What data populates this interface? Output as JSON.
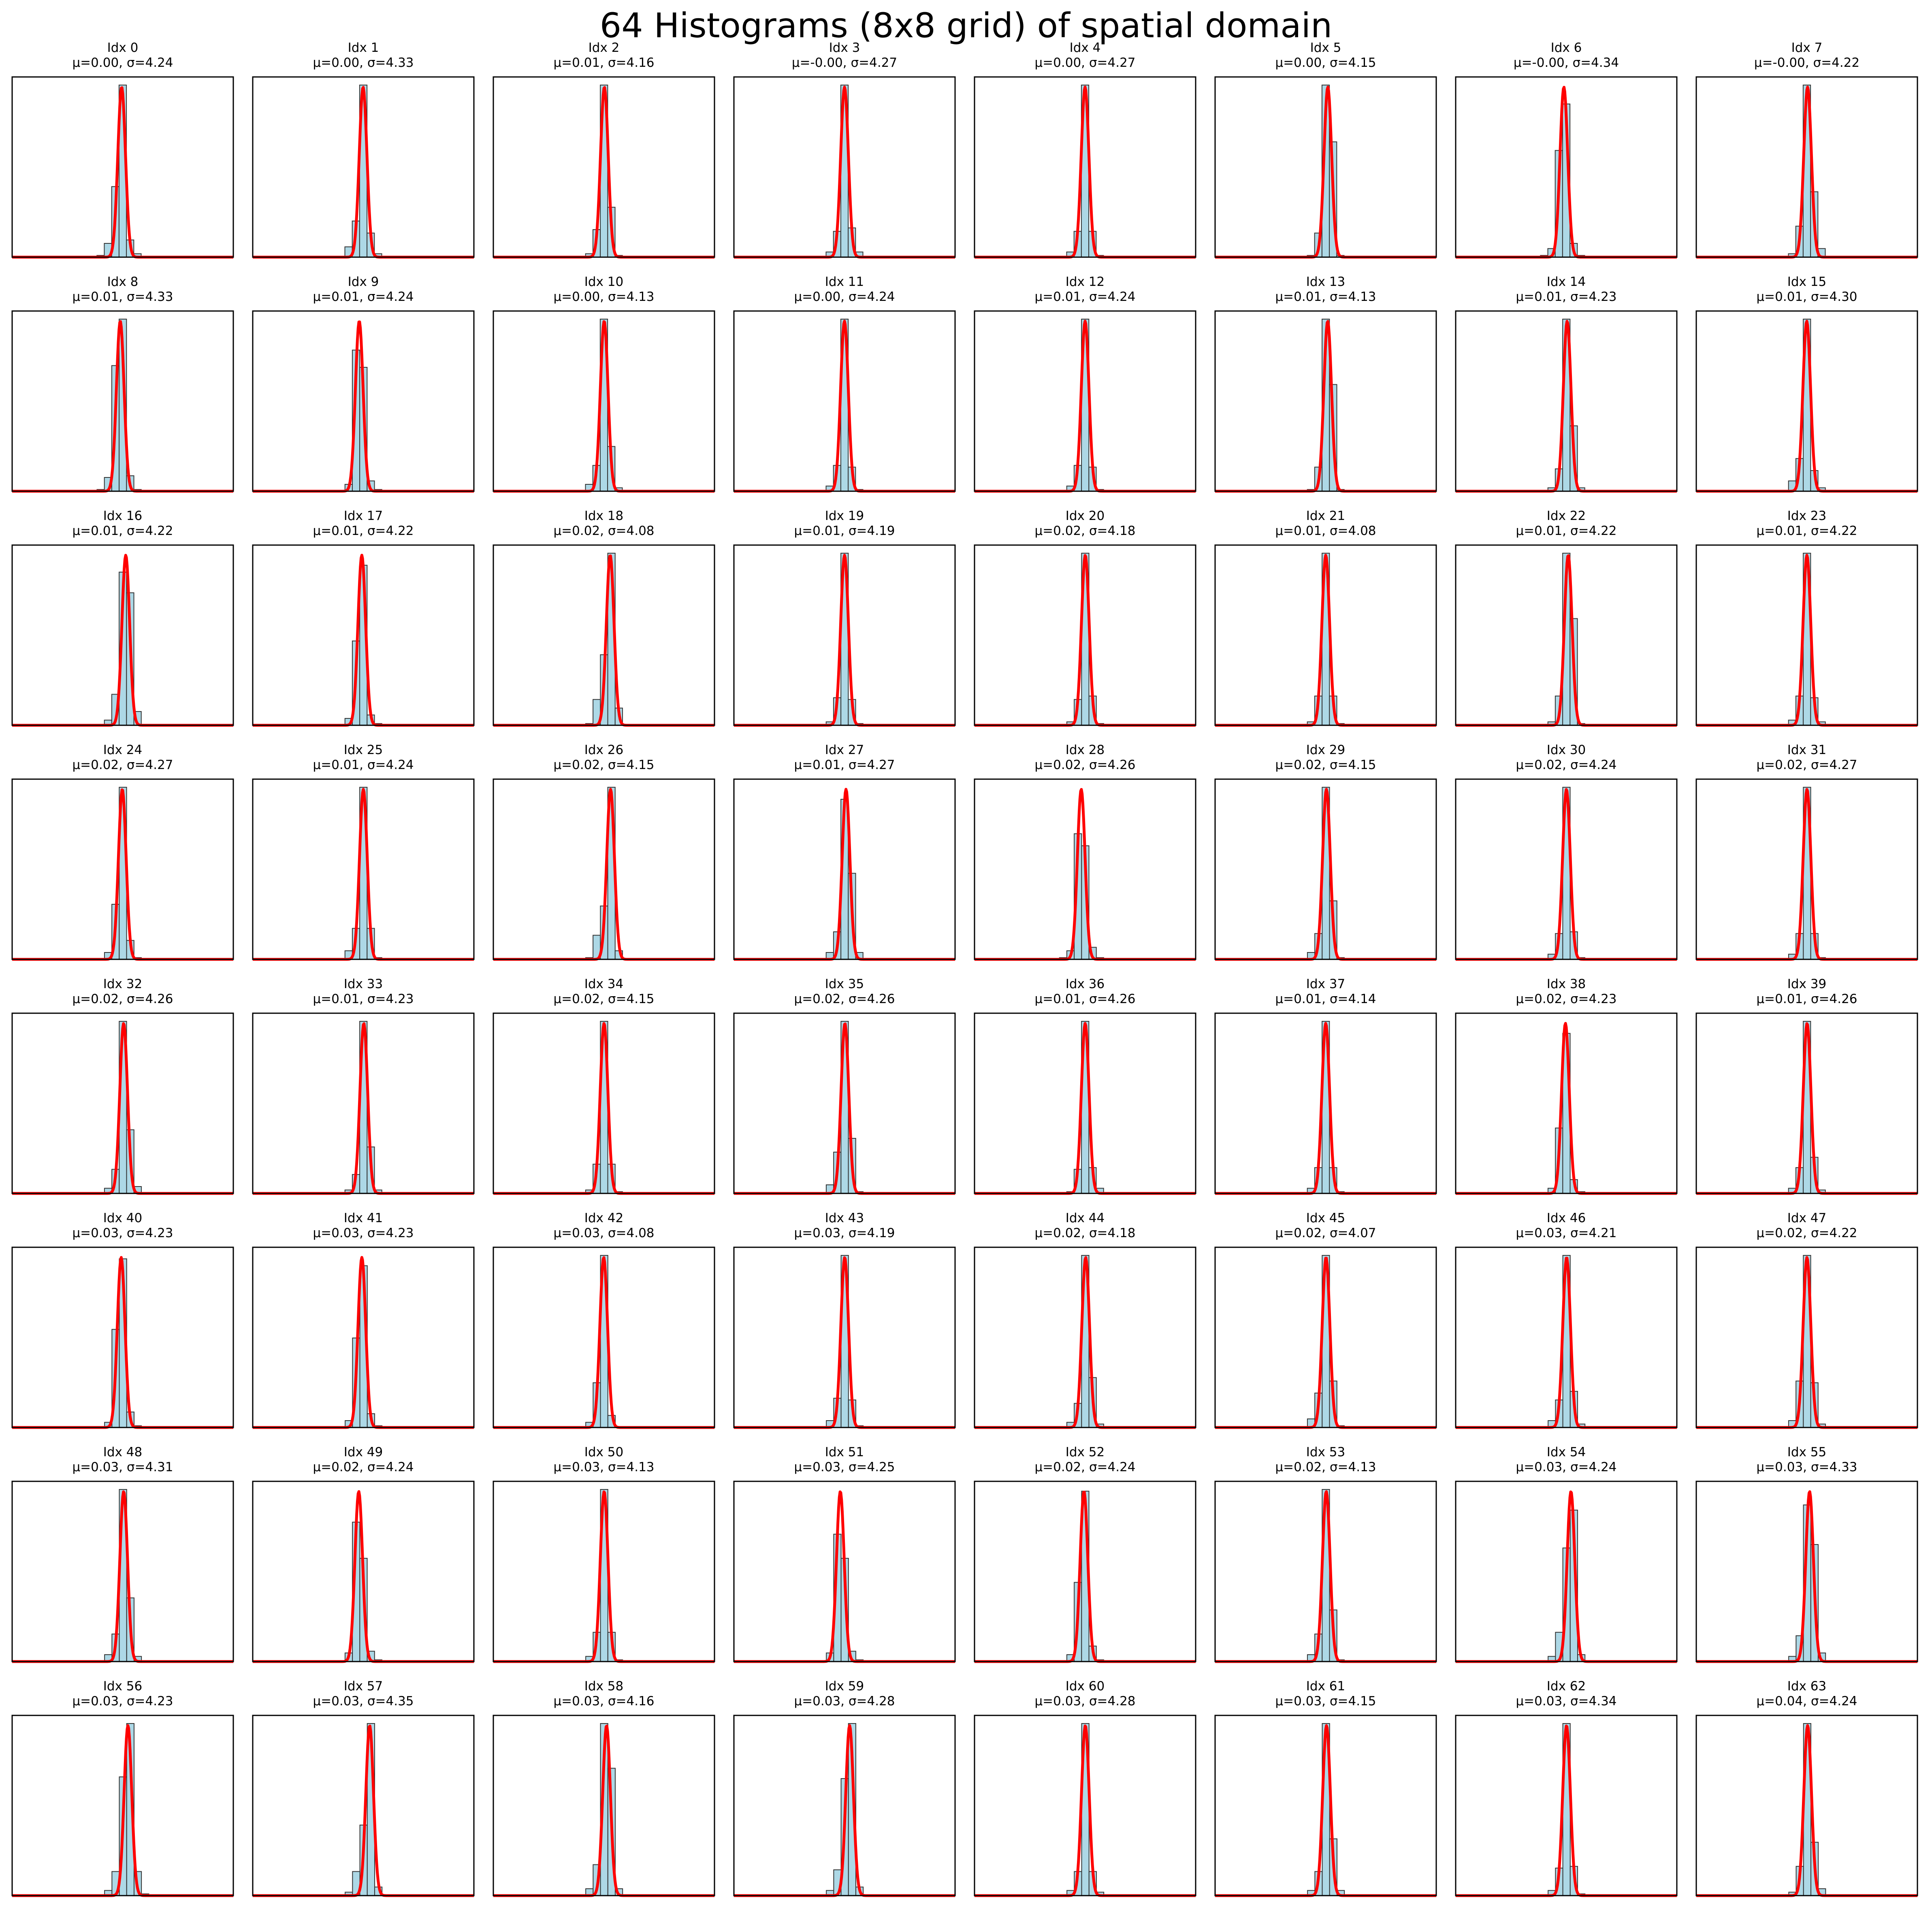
{
  "title": "64 Histograms (8x8 grid) of spatial domain",
  "colors": {
    "bar_fill": "#add8e6",
    "bar_edge": "#333333",
    "fit_curve": "#ff0000",
    "axes_frame": "#000000"
  },
  "chart_data": {
    "type": "histogram-grid",
    "rows": 8,
    "cols": 8,
    "xlim": [
      -150,
      150
    ],
    "bin_width": 10,
    "bins": [
      -30,
      -20,
      -10,
      0,
      10,
      20,
      30
    ],
    "axes_ticks_visible": false,
    "fit": "normal-pdf",
    "grid": false,
    "panels": [
      {
        "label": "Idx 0",
        "stats": "μ=0.00, σ=4.24",
        "mu": 0.0,
        "sigma": 4.24,
        "counts": [
          0.01,
          0.08,
          0.41,
          1.0,
          0.1,
          0.02,
          0.0
        ]
      },
      {
        "label": "Idx 1",
        "stats": "μ=0.00, σ=4.33",
        "mu": 0.0,
        "sigma": 4.33,
        "counts": [
          0.0,
          0.06,
          0.21,
          1.0,
          0.14,
          0.02,
          0.0
        ]
      },
      {
        "label": "Idx 2",
        "stats": "μ=0.01, σ=4.16",
        "mu": 0.01,
        "sigma": 4.16,
        "counts": [
          0.0,
          0.02,
          0.16,
          1.0,
          0.29,
          0.01,
          0.0
        ]
      },
      {
        "label": "Idx 3",
        "stats": "μ=-0.00, σ=4.27",
        "mu": -0.0,
        "sigma": 4.27,
        "counts": [
          0.0,
          0.03,
          0.15,
          1.0,
          0.17,
          0.03,
          0.0
        ]
      },
      {
        "label": "Idx 4",
        "stats": "μ=0.00, σ=4.27",
        "mu": 0.0,
        "sigma": 4.27,
        "counts": [
          0.0,
          0.03,
          0.15,
          1.0,
          0.15,
          0.01,
          0.0
        ]
      },
      {
        "label": "Idx 5",
        "stats": "μ=0.00, σ=4.15",
        "mu": 0.0,
        "sigma": 4.15,
        "counts": [
          0.0,
          0.01,
          0.14,
          1.0,
          0.67,
          0.01,
          0.0
        ]
      },
      {
        "label": "Idx 6",
        "stats": "μ=-0.00, σ=4.34",
        "mu": -0.0,
        "sigma": 4.34,
        "counts": [
          0.01,
          0.05,
          0.62,
          0.89,
          0.08,
          0.01,
          0.0
        ]
      },
      {
        "label": "Idx 7",
        "stats": "μ=-0.00, σ=4.22",
        "mu": -0.0,
        "sigma": 4.22,
        "counts": [
          0.0,
          0.02,
          0.18,
          1.0,
          0.38,
          0.05,
          0.0
        ]
      },
      {
        "label": "Idx 8",
        "stats": "μ=0.01, σ=4.33",
        "mu": 0.01,
        "sigma": 4.33,
        "counts": [
          0.01,
          0.08,
          0.73,
          1.0,
          0.09,
          0.01,
          0.0
        ]
      },
      {
        "label": "Idx 9",
        "stats": "μ=0.01, σ=4.24",
        "mu": 0.01,
        "sigma": 4.24,
        "counts": [
          0.0,
          0.04,
          0.82,
          0.72,
          0.06,
          0.01,
          0.0
        ]
      },
      {
        "label": "Idx 10",
        "stats": "μ=0.00, σ=4.13",
        "mu": 0.0,
        "sigma": 4.13,
        "counts": [
          0.0,
          0.04,
          0.15,
          1.0,
          0.26,
          0.02,
          0.0
        ]
      },
      {
        "label": "Idx 11",
        "stats": "μ=0.00, σ=4.24",
        "mu": 0.0,
        "sigma": 4.24,
        "counts": [
          0.0,
          0.03,
          0.15,
          1.0,
          0.14,
          0.01,
          0.0
        ]
      },
      {
        "label": "Idx 12",
        "stats": "μ=0.01, σ=4.24",
        "mu": 0.01,
        "sigma": 4.24,
        "counts": [
          0.0,
          0.03,
          0.15,
          1.0,
          0.14,
          0.01,
          0.0
        ]
      },
      {
        "label": "Idx 13",
        "stats": "μ=0.01, σ=4.13",
        "mu": 0.01,
        "sigma": 4.13,
        "counts": [
          0.0,
          0.01,
          0.14,
          1.0,
          0.62,
          0.01,
          0.0
        ]
      },
      {
        "label": "Idx 14",
        "stats": "μ=0.01, σ=4.23",
        "mu": 0.01,
        "sigma": 4.23,
        "counts": [
          0.0,
          0.02,
          0.13,
          1.0,
          0.38,
          0.02,
          0.0
        ]
      },
      {
        "label": "Idx 15",
        "stats": "μ=0.01, σ=4.30",
        "mu": 0.01,
        "sigma": 4.3,
        "counts": [
          0.0,
          0.06,
          0.19,
          1.0,
          0.12,
          0.02,
          0.0
        ]
      },
      {
        "label": "Idx 16",
        "stats": "μ=0.01, σ=4.22",
        "mu": 0.01,
        "sigma": 4.22,
        "counts": [
          0.0,
          0.03,
          0.18,
          0.89,
          0.77,
          0.08,
          0.0
        ]
      },
      {
        "label": "Idx 17",
        "stats": "μ=0.01, σ=4.22",
        "mu": 0.01,
        "sigma": 4.22,
        "counts": [
          0.0,
          0.04,
          0.49,
          0.93,
          0.06,
          0.01,
          0.0
        ]
      },
      {
        "label": "Idx 18",
        "stats": "μ=0.02, σ=4.08",
        "mu": 0.02,
        "sigma": 4.08,
        "counts": [
          0.0,
          0.01,
          0.15,
          0.41,
          1.0,
          0.1,
          0.0
        ]
      },
      {
        "label": "Idx 19",
        "stats": "μ=0.01, σ=4.19",
        "mu": 0.01,
        "sigma": 4.19,
        "counts": [
          0.0,
          0.02,
          0.16,
          1.0,
          0.15,
          0.01,
          0.0
        ]
      },
      {
        "label": "Idx 20",
        "stats": "μ=0.02, σ=4.18",
        "mu": 0.02,
        "sigma": 4.18,
        "counts": [
          0.0,
          0.02,
          0.15,
          1.0,
          0.17,
          0.01,
          0.0
        ]
      },
      {
        "label": "Idx 21",
        "stats": "μ=0.01, σ=4.08",
        "mu": 0.01,
        "sigma": 4.08,
        "counts": [
          0.0,
          0.02,
          0.17,
          1.0,
          0.17,
          0.01,
          0.0
        ]
      },
      {
        "label": "Idx 22",
        "stats": "μ=0.01, σ=4.22",
        "mu": 0.01,
        "sigma": 4.22,
        "counts": [
          0.0,
          0.02,
          0.17,
          1.0,
          0.62,
          0.01,
          0.0
        ]
      },
      {
        "label": "Idx 23",
        "stats": "μ=0.01, σ=4.22",
        "mu": 0.01,
        "sigma": 4.22,
        "counts": [
          0.0,
          0.03,
          0.17,
          1.0,
          0.16,
          0.02,
          0.0
        ]
      },
      {
        "label": "Idx 24",
        "stats": "μ=0.02, σ=4.27",
        "mu": 0.02,
        "sigma": 4.27,
        "counts": [
          0.0,
          0.04,
          0.32,
          1.0,
          0.11,
          0.01,
          0.0
        ]
      },
      {
        "label": "Idx 25",
        "stats": "μ=0.01, σ=4.24",
        "mu": 0.01,
        "sigma": 4.24,
        "counts": [
          0.0,
          0.05,
          0.18,
          1.0,
          0.18,
          0.01,
          0.0
        ]
      },
      {
        "label": "Idx 26",
        "stats": "μ=0.02, σ=4.15",
        "mu": 0.02,
        "sigma": 4.15,
        "counts": [
          0.0,
          0.01,
          0.14,
          0.31,
          1.0,
          0.05,
          0.0
        ]
      },
      {
        "label": "Idx 27",
        "stats": "μ=0.01, σ=4.27",
        "mu": 0.01,
        "sigma": 4.27,
        "counts": [
          0.0,
          0.04,
          0.16,
          0.93,
          0.5,
          0.04,
          0.0
        ]
      },
      {
        "label": "Idx 28",
        "stats": "μ=0.02, σ=4.26",
        "mu": 0.02,
        "sigma": 4.26,
        "counts": [
          0.01,
          0.05,
          0.73,
          0.66,
          0.07,
          0.01,
          0.0
        ]
      },
      {
        "label": "Idx 29",
        "stats": "μ=0.02, σ=4.15",
        "mu": 0.02,
        "sigma": 4.15,
        "counts": [
          0.0,
          0.04,
          0.15,
          1.0,
          0.34,
          0.01,
          0.0
        ]
      },
      {
        "label": "Idx 30",
        "stats": "μ=0.02, σ=4.24",
        "mu": 0.02,
        "sigma": 4.24,
        "counts": [
          0.0,
          0.03,
          0.15,
          1.0,
          0.16,
          0.01,
          0.0
        ]
      },
      {
        "label": "Idx 31",
        "stats": "μ=0.02, σ=4.27",
        "mu": 0.02,
        "sigma": 4.27,
        "counts": [
          0.0,
          0.03,
          0.15,
          1.0,
          0.15,
          0.01,
          0.0
        ]
      },
      {
        "label": "Idx 32",
        "stats": "μ=0.02, σ=4.26",
        "mu": 0.02,
        "sigma": 4.26,
        "counts": [
          0.0,
          0.03,
          0.14,
          1.0,
          0.37,
          0.04,
          0.0
        ]
      },
      {
        "label": "Idx 33",
        "stats": "μ=0.01, σ=4.23",
        "mu": 0.01,
        "sigma": 4.23,
        "counts": [
          0.0,
          0.02,
          0.11,
          1.0,
          0.27,
          0.02,
          0.0
        ]
      },
      {
        "label": "Idx 34",
        "stats": "μ=0.02, σ=4.15",
        "mu": 0.02,
        "sigma": 4.15,
        "counts": [
          0.0,
          0.02,
          0.17,
          1.0,
          0.17,
          0.01,
          0.0
        ]
      },
      {
        "label": "Idx 35",
        "stats": "μ=0.02, σ=4.26",
        "mu": 0.02,
        "sigma": 4.26,
        "counts": [
          0.0,
          0.05,
          0.24,
          1.0,
          0.32,
          0.01,
          0.0
        ]
      },
      {
        "label": "Idx 36",
        "stats": "μ=0.01, σ=4.26",
        "mu": 0.01,
        "sigma": 4.26,
        "counts": [
          0.0,
          0.01,
          0.14,
          1.0,
          0.15,
          0.03,
          0.0
        ]
      },
      {
        "label": "Idx 37",
        "stats": "μ=0.01, σ=4.14",
        "mu": 0.01,
        "sigma": 4.14,
        "counts": [
          0.0,
          0.03,
          0.15,
          1.0,
          0.15,
          0.01,
          0.0
        ]
      },
      {
        "label": "Idx 38",
        "stats": "μ=0.02, σ=4.23",
        "mu": 0.02,
        "sigma": 4.23,
        "counts": [
          0.0,
          0.03,
          0.38,
          0.93,
          0.08,
          0.01,
          0.0
        ]
      },
      {
        "label": "Idx 39",
        "stats": "μ=0.01, σ=4.26",
        "mu": 0.01,
        "sigma": 4.26,
        "counts": [
          0.0,
          0.03,
          0.15,
          1.0,
          0.21,
          0.02,
          0.0
        ]
      },
      {
        "label": "Idx 40",
        "stats": "μ=0.03, σ=4.23",
        "mu": 0.03,
        "sigma": 4.23,
        "counts": [
          0.0,
          0.03,
          0.57,
          0.98,
          0.09,
          0.01,
          0.0
        ]
      },
      {
        "label": "Idx 41",
        "stats": "μ=0.03, σ=4.23",
        "mu": 0.03,
        "sigma": 4.23,
        "counts": [
          0.0,
          0.04,
          0.52,
          0.94,
          0.08,
          0.01,
          0.0
        ]
      },
      {
        "label": "Idx 42",
        "stats": "μ=0.03, σ=4.08",
        "mu": 0.03,
        "sigma": 4.08,
        "counts": [
          0.0,
          0.03,
          0.26,
          1.0,
          0.07,
          0.0,
          0.0
        ]
      },
      {
        "label": "Idx 43",
        "stats": "μ=0.03, σ=4.19",
        "mu": 0.03,
        "sigma": 4.19,
        "counts": [
          0.0,
          0.04,
          0.17,
          1.0,
          0.16,
          0.01,
          0.0
        ]
      },
      {
        "label": "Idx 44",
        "stats": "μ=0.02, σ=4.18",
        "mu": 0.02,
        "sigma": 4.18,
        "counts": [
          0.0,
          0.03,
          0.14,
          1.0,
          0.29,
          0.02,
          0.0
        ]
      },
      {
        "label": "Idx 45",
        "stats": "μ=0.02, σ=4.07",
        "mu": 0.02,
        "sigma": 4.07,
        "counts": [
          0.0,
          0.05,
          0.2,
          1.0,
          0.27,
          0.01,
          0.0
        ]
      },
      {
        "label": "Idx 46",
        "stats": "μ=0.03, σ=4.21",
        "mu": 0.03,
        "sigma": 4.21,
        "counts": [
          0.0,
          0.04,
          0.16,
          1.0,
          0.21,
          0.02,
          0.0
        ]
      },
      {
        "label": "Idx 47",
        "stats": "μ=0.02, σ=4.22",
        "mu": 0.02,
        "sigma": 4.22,
        "counts": [
          0.0,
          0.04,
          0.27,
          1.0,
          0.26,
          0.02,
          0.0
        ]
      },
      {
        "label": "Idx 48",
        "stats": "μ=0.03, σ=4.31",
        "mu": 0.03,
        "sigma": 4.31,
        "counts": [
          0.0,
          0.04,
          0.16,
          1.0,
          0.37,
          0.03,
          0.0
        ]
      },
      {
        "label": "Idx 49",
        "stats": "μ=0.02, σ=4.24",
        "mu": 0.02,
        "sigma": 4.24,
        "counts": [
          0.0,
          0.05,
          0.81,
          0.6,
          0.06,
          0.01,
          0.0
        ]
      },
      {
        "label": "Idx 50",
        "stats": "μ=0.03, σ=4.13",
        "mu": 0.03,
        "sigma": 4.13,
        "counts": [
          0.0,
          0.03,
          0.17,
          1.0,
          0.17,
          0.01,
          0.0
        ]
      },
      {
        "label": "Idx 51",
        "stats": "μ=0.03, σ=4.25",
        "mu": 0.03,
        "sigma": 4.25,
        "counts": [
          0.0,
          0.05,
          0.74,
          0.6,
          0.06,
          0.01,
          0.0
        ]
      },
      {
        "label": "Idx 52",
        "stats": "μ=0.02, σ=4.24",
        "mu": 0.02,
        "sigma": 4.24,
        "counts": [
          0.0,
          0.04,
          0.46,
          0.99,
          0.09,
          0.01,
          0.0
        ]
      },
      {
        "label": "Idx 53",
        "stats": "μ=0.02, σ=4.13",
        "mu": 0.02,
        "sigma": 4.13,
        "counts": [
          0.0,
          0.04,
          0.16,
          1.0,
          0.3,
          0.01,
          0.0
        ]
      },
      {
        "label": "Idx 54",
        "stats": "μ=0.03, σ=4.24",
        "mu": 0.03,
        "sigma": 4.24,
        "counts": [
          0.0,
          0.03,
          0.17,
          0.66,
          0.88,
          0.04,
          0.0
        ]
      },
      {
        "label": "Idx 55",
        "stats": "μ=0.03, σ=4.33",
        "mu": 0.03,
        "sigma": 4.33,
        "counts": [
          0.0,
          0.03,
          0.15,
          0.91,
          0.68,
          0.05,
          0.0
        ]
      },
      {
        "label": "Idx 56",
        "stats": "μ=0.03, σ=4.23",
        "mu": 0.03,
        "sigma": 4.23,
        "counts": [
          0.0,
          0.03,
          0.14,
          0.69,
          1.0,
          0.14,
          0.01
        ]
      },
      {
        "label": "Idx 57",
        "stats": "μ=0.03, σ=4.35",
        "mu": 0.03,
        "sigma": 4.35,
        "counts": [
          0.0,
          0.02,
          0.14,
          0.41,
          1.0,
          0.05,
          0.0
        ]
      },
      {
        "label": "Idx 58",
        "stats": "μ=0.03, σ=4.16",
        "mu": 0.03,
        "sigma": 4.16,
        "counts": [
          0.0,
          0.04,
          0.18,
          1.0,
          0.74,
          0.04,
          0.0
        ]
      },
      {
        "label": "Idx 59",
        "stats": "μ=0.03, σ=4.28",
        "mu": 0.03,
        "sigma": 4.28,
        "counts": [
          0.0,
          0.03,
          0.15,
          0.68,
          1.0,
          0.05,
          0.0
        ]
      },
      {
        "label": "Idx 60",
        "stats": "μ=0.03, σ=4.28",
        "mu": 0.03,
        "sigma": 4.28,
        "counts": [
          0.0,
          0.03,
          0.14,
          1.0,
          0.14,
          0.02,
          0.0
        ]
      },
      {
        "label": "Idx 61",
        "stats": "μ=0.03, σ=4.15",
        "mu": 0.03,
        "sigma": 4.15,
        "counts": [
          0.0,
          0.03,
          0.14,
          1.0,
          0.33,
          0.03,
          0.0
        ]
      },
      {
        "label": "Idx 62",
        "stats": "μ=0.03, σ=4.34",
        "mu": 0.03,
        "sigma": 4.34,
        "counts": [
          0.0,
          0.03,
          0.16,
          1.0,
          0.17,
          0.01,
          0.0
        ]
      },
      {
        "label": "Idx 63",
        "stats": "μ=0.04, σ=4.24",
        "mu": 0.04,
        "sigma": 4.24,
        "counts": [
          0.0,
          0.02,
          0.17,
          1.0,
          0.31,
          0.04,
          0.0
        ]
      }
    ]
  }
}
